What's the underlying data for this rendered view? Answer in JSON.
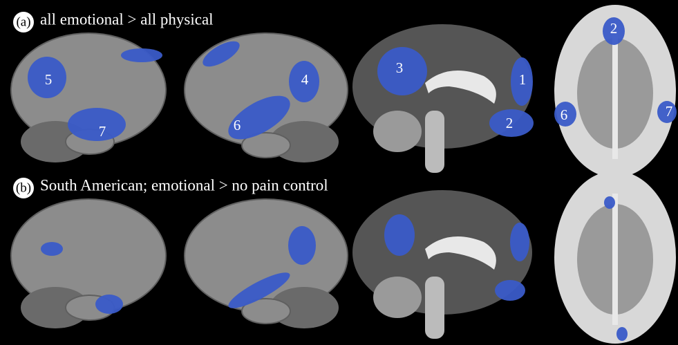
{
  "panels": [
    {
      "label": "(a)",
      "caption": "all emotional > all physical",
      "region_labels": [
        "5",
        "7",
        "4",
        "6",
        "3",
        "1",
        "2",
        "2",
        "6",
        "7"
      ]
    },
    {
      "label": "(b)",
      "caption": "South American; emotional > no pain control"
    }
  ]
}
